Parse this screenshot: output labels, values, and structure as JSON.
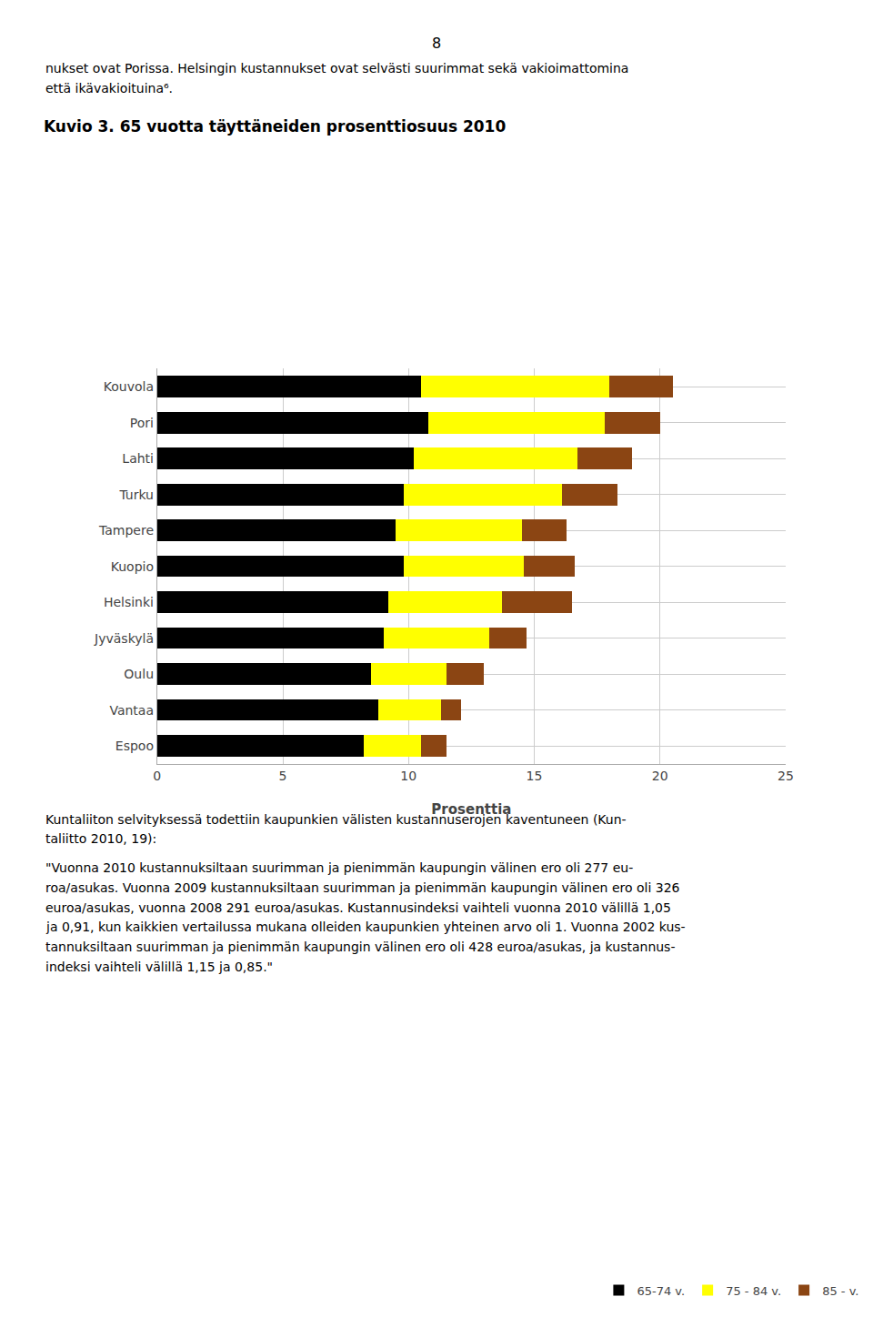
{
  "chart_data": {
    "type": "bar",
    "orientation": "horizontal",
    "stacked": true,
    "title": "Kuvio 3. 65 vuotta täyttäneiden prosenttiosuus 2010",
    "xlabel": "Prosenttia",
    "categories": [
      "Kouvola",
      "Pori",
      "Lahti",
      "Turku",
      "Tampere",
      "Kuopio",
      "Helsinki",
      "Jyväskylä",
      "Oulu",
      "Vantaa",
      "Espoo"
    ],
    "series": [
      {
        "name": "65-74 v.",
        "color": "#000000",
        "values": [
          10.5,
          10.8,
          10.2,
          9.8,
          9.5,
          9.8,
          9.2,
          9.0,
          8.5,
          8.8,
          8.2
        ]
      },
      {
        "name": "75 - 84 v.",
        "color": "#ffff00",
        "values": [
          7.5,
          7.0,
          6.5,
          6.3,
          5.0,
          4.8,
          4.5,
          4.2,
          3.0,
          2.5,
          2.3
        ]
      },
      {
        "name": "85 - v.",
        "color": "#8B4513",
        "values": [
          2.5,
          2.2,
          2.2,
          2.2,
          1.8,
          2.0,
          2.8,
          1.5,
          1.5,
          0.8,
          1.0
        ]
      }
    ],
    "xlim": [
      0,
      25
    ],
    "xticks": [
      0,
      5,
      10,
      15,
      20,
      25
    ],
    "grid": true,
    "legend": "lower right",
    "annotations": [
      "8",
      "nukset ovat Porissa. Helsingin kustannukset ovat selvästi suurimmat sekä vakioimattomina",
      "että ikävakioituina⁶.",
      "Kuntaliiton selvityksessä todettiin kaupunkien välisten kustannuserojen kaventuneen (Kun-",
      "taliitto 2010, 19):",
      "\"Vuonna 2010 kustannuksiltaan suurimman ja pienimmän kaupungin välinen ero oli 277 eu-",
      "roa/asukas. Vuonna 2009 kustannuksiltaan suurimman ja pienimmän kaupungin välinen ero oli 326",
      "euroa/asukas, vuonna 2008 291 euroa/asukas. Kustannusindeksi vaihteli vuonna 2010 välillä 1,05",
      "ja 0,91, kun kaikkien vertailussa mukana olleiden kaupunkien yhteinen arvo oli 1. Vuonna 2002 kus-",
      "tannuksiltaan suurimman ja pienimmän kaupungin välinen ero oli 428 euroa/asukas, ja kustannus-",
      "indeksi vaihteli välillä 1,15 ja 0,85.\""
    ]
  }
}
